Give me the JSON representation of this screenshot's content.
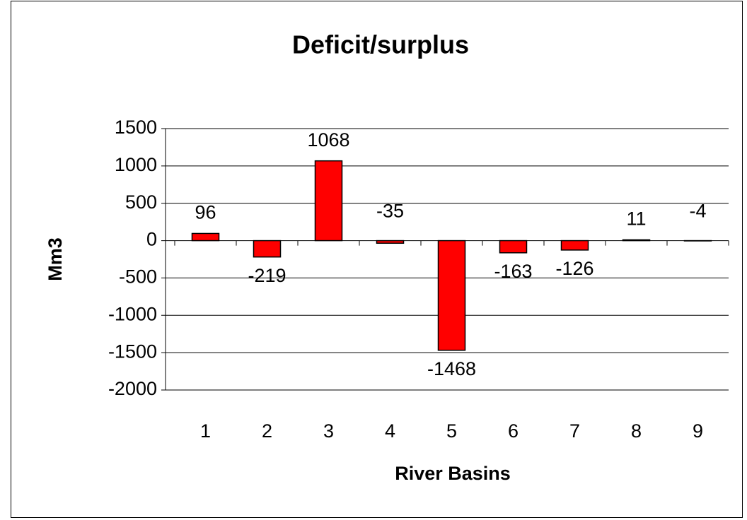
{
  "chart_data": {
    "type": "bar",
    "title": "Deficit/surplus",
    "x_label": "River Basins",
    "y_label": "Mm3",
    "categories": [
      "1",
      "2",
      "3",
      "4",
      "5",
      "6",
      "7",
      "8",
      "9"
    ],
    "values": [
      96,
      -219,
      1068,
      -35,
      -1468,
      -163,
      -126,
      11,
      -4
    ],
    "color": "#ff0000",
    "ylim": [
      -2000,
      1500
    ],
    "yticks": [
      -2000,
      -1500,
      -1000,
      -500,
      0,
      500,
      1000,
      1500
    ],
    "grid": true
  }
}
